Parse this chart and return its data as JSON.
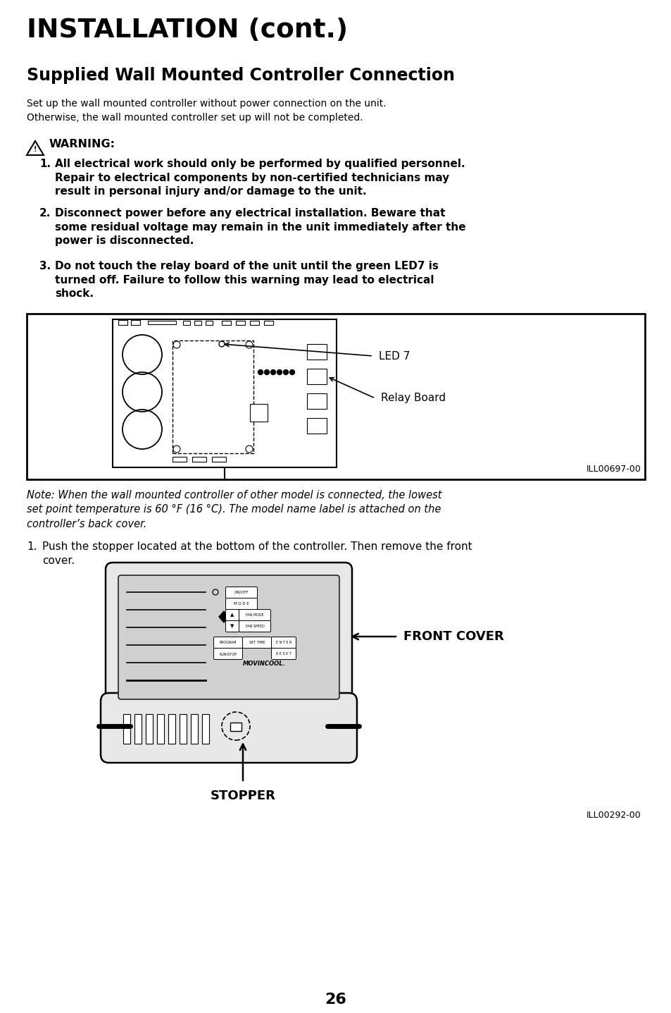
{
  "bg_color": "#ffffff",
  "title1": "INSTALLATION (cont.)",
  "title2": "Supplied Wall Mounted Controller Connection",
  "intro_text": "Set up the wall mounted controller without power connection on the unit.\nOtherwise, the wall mounted controller set up will not be completed.",
  "warning_label": "WARNING:",
  "warning_items": [
    "All electrical work should only be performed by qualified personnel.\nRepair to electrical components by non-certified technicians may\nresult in personal injury and/or damage to the unit.",
    "Disconnect power before any electrical installation. Beware that\nsome residual voltage may remain in the unit immediately after the\npower is disconnected.",
    "Do not touch the relay board of the unit until the green LED7 is\nturned off. Failure to follow this warning may lead to electrical\nshock."
  ],
  "fig1_label_led7": "LED 7",
  "fig1_label_relay": "Relay Board",
  "fig1_caption": "ILL00697-00",
  "note_text": "Note: When the wall mounted controller of other model is connected, the lowest\nset point temperature is 60 °F (16 °C). The model name label is attached on the\ncontroller’s back cover.",
  "step1_num": "1.",
  "step1_text": "Push the stopper located at the bottom of the controller. Then remove the front\ncover.",
  "fig2_label_front": "FRONT COVER",
  "fig2_label_stopper": "STOPPER",
  "fig2_caption": "ILL00292-00",
  "page_number": "26",
  "text_color": "#000000"
}
